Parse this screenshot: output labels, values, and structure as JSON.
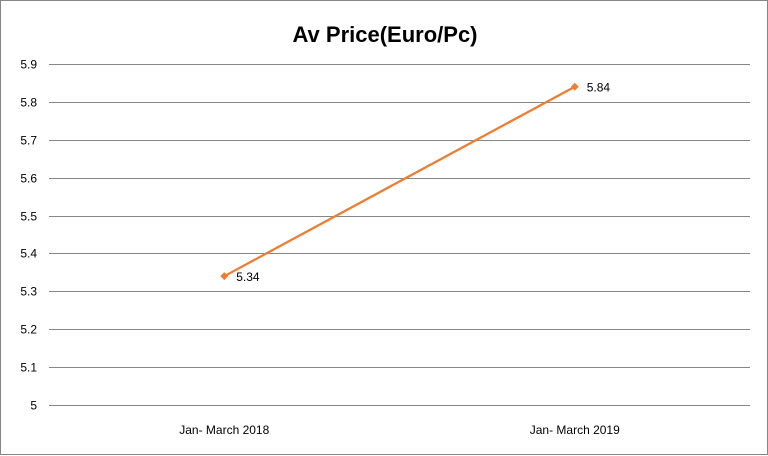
{
  "chart_data": {
    "type": "line",
    "title": "Av Price(Euro/Pc)",
    "categories": [
      "Jan- March 2018",
      "Jan- March 2019"
    ],
    "series": [
      {
        "values": [
          5.34,
          5.84
        ],
        "color": "#ED7D31"
      }
    ],
    "data_labels": [
      "5.34",
      "5.84"
    ],
    "ylim": [
      5,
      5.9
    ],
    "yticks": [
      5,
      5.1,
      5.2,
      5.3,
      5.4,
      5.5,
      5.6,
      5.7,
      5.8,
      5.9
    ],
    "ytick_labels": [
      "5",
      "5.1",
      "5.2",
      "5.3",
      "5.4",
      "5.5",
      "5.6",
      "5.7",
      "5.8",
      "5.9"
    ],
    "grid": true,
    "legend": "none",
    "gridline_color": "#868686"
  }
}
